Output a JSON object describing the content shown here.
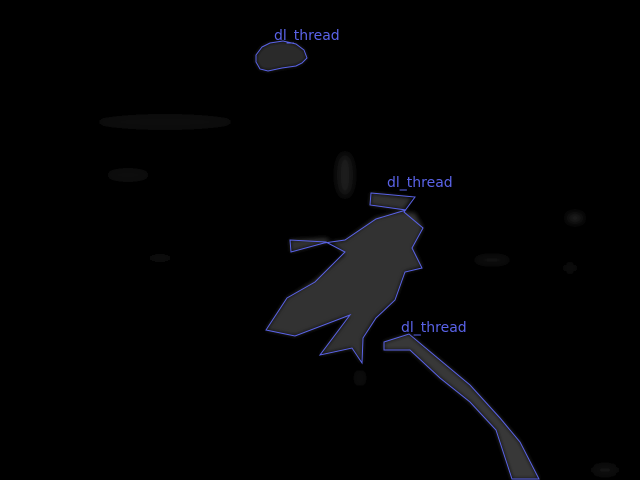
{
  "scene": {
    "background_color": "#000000",
    "annotation_color": "#5a63e8",
    "region_fill_color": "#2e2e2e"
  },
  "annotations": [
    {
      "label": "dl_thread"
    },
    {
      "label": "dl_thread"
    },
    {
      "label": "dl_thread"
    }
  ]
}
